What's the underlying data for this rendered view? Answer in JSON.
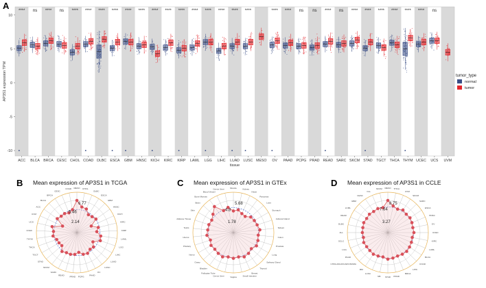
{
  "colors": {
    "normal": "#3a4e86",
    "tumor": "#e3262c",
    "panel_bg": "#d9d9d9",
    "radar_line": "#d96a6a",
    "radar_point": "#d9505a",
    "radar_fill": "#f2c9cc",
    "mean_circle": "#2f54c8",
    "outer_ring": "#e8b352",
    "spoke": "#9a9a9a"
  },
  "chart_data": [
    {
      "panel": "A",
      "type": "box-strip",
      "ylabel": "AP3S1 expression TPM",
      "xlabel": "tissue",
      "yticks": [
        10,
        5,
        0,
        -5,
        -10
      ],
      "ylim": [
        -10.8,
        11.2
      ],
      "legend": {
        "title": "tumor_type",
        "items": [
          "normal",
          "tumor"
        ]
      },
      "groups": [
        {
          "tissue": "ACC",
          "normal": 5.1,
          "tumor": 5.9,
          "sig": "****"
        },
        {
          "tissue": "BLCA",
          "normal": 5.6,
          "tumor": 5.4,
          "sig": "ns"
        },
        {
          "tissue": "BRCA",
          "normal": 5.8,
          "tumor": 6.2,
          "sig": "****"
        },
        {
          "tissue": "CESC",
          "normal": 5.7,
          "tumor": 5.5,
          "sig": "ns"
        },
        {
          "tissue": "CHOL",
          "normal": 4.5,
          "tumor": 5.4,
          "sig": "****"
        },
        {
          "tissue": "COAD",
          "normal": 5.7,
          "tumor": 6.1,
          "sig": "****"
        },
        {
          "tissue": "DLBC",
          "normal": 4.6,
          "tumor": 6.4,
          "sig": "****"
        },
        {
          "tissue": "ESCA",
          "normal": 5.1,
          "tumor": 6.0,
          "sig": "****"
        },
        {
          "tissue": "GBM",
          "normal": 6.1,
          "tumor": 6.0,
          "sig": "****"
        },
        {
          "tissue": "HNSC",
          "normal": 5.4,
          "tumor": 5.6,
          "sig": "****"
        },
        {
          "tissue": "KICH",
          "normal": 5.3,
          "tumor": 4.3,
          "sig": "****"
        },
        {
          "tissue": "KIRC",
          "normal": 5.2,
          "tumor": 5.9,
          "sig": "****"
        },
        {
          "tissue": "KIRP",
          "normal": 4.8,
          "tumor": 5.1,
          "sig": "****"
        },
        {
          "tissue": "LAML",
          "normal": 5.2,
          "tumor": 5.8,
          "sig": "****"
        },
        {
          "tissue": "LGG",
          "normal": 6.0,
          "tumor": 6.0,
          "sig": "****"
        },
        {
          "tissue": "LIHC",
          "normal": 4.7,
          "tumor": 5.4,
          "sig": "****"
        },
        {
          "tissue": "LUAD",
          "normal": 5.4,
          "tumor": 6.0,
          "sig": "****"
        },
        {
          "tissue": "LUSC",
          "normal": 5.4,
          "tumor": 6.0,
          "sig": "****"
        },
        {
          "tissue": "MESO",
          "normal": null,
          "tumor": 6.8,
          "sig": ""
        },
        {
          "tissue": "OV",
          "normal": 5.6,
          "tumor": 6.2,
          "sig": "****"
        },
        {
          "tissue": "PAAD",
          "normal": 5.5,
          "tumor": 5.9,
          "sig": "****"
        },
        {
          "tissue": "PCPG",
          "normal": 5.4,
          "tumor": 5.5,
          "sig": "ns"
        },
        {
          "tissue": "PRAD",
          "normal": 5.2,
          "tumor": 5.5,
          "sig": "ns"
        },
        {
          "tissue": "READ",
          "normal": 5.7,
          "tumor": 6.1,
          "sig": "****"
        },
        {
          "tissue": "SARC",
          "normal": 5.6,
          "tumor": 5.8,
          "sig": "ns"
        },
        {
          "tissue": "SKCM",
          "normal": 5.8,
          "tumor": 6.3,
          "sig": "****"
        },
        {
          "tissue": "STAD",
          "normal": 5.1,
          "tumor": 6.0,
          "sig": "****"
        },
        {
          "tissue": "TGCT",
          "normal": 5.5,
          "tumor": 5.2,
          "sig": "****"
        },
        {
          "tissue": "THCA",
          "normal": 5.9,
          "tumor": 5.6,
          "sig": "****"
        },
        {
          "tissue": "THYM",
          "normal": 5.0,
          "tumor": 6.6,
          "sig": "****"
        },
        {
          "tissue": "UCEC",
          "normal": 5.7,
          "tumor": 6.0,
          "sig": "****"
        },
        {
          "tissue": "UCS",
          "normal": 6.2,
          "tumor": 6.2,
          "sig": "ns"
        },
        {
          "tissue": "UVM",
          "normal": null,
          "tumor": 4.5,
          "sig": ""
        }
      ],
      "low_outliers": [
        "ACC",
        "COAD",
        "ESCA",
        "GBM",
        "KICH",
        "KIRP",
        "LGG",
        "LUAD",
        "LUSC",
        "OV",
        "READ",
        "STAD",
        "THYM"
      ]
    },
    {
      "panel": "B",
      "type": "radar",
      "title": "Mean expression of AP3S1 in TCGA",
      "ring_labels": [
        "6.77",
        "5.46",
        "2.14"
      ],
      "max": 6.77,
      "center_value": 2.14,
      "mean": 5.46,
      "categories": [
        "MESO",
        "CHOL",
        "DLBC",
        "ESCA",
        "GBM",
        "HNSC",
        "KICH",
        "KIRC",
        "KIRP",
        "LAML",
        "LGG",
        "LIHC",
        "LUAD",
        "LUSC",
        "OV",
        "PAAD",
        "PCPG",
        "PRAD",
        "READ",
        "SARC",
        "SKCM",
        "STAD",
        "TGCT",
        "THCA",
        "THYM",
        "UCEC",
        "UCS",
        "UVM",
        "ACC",
        "BLCA",
        "BRCA",
        "CESC",
        "COAD"
      ],
      "values": [
        6.77,
        5.9,
        5.8,
        5.2,
        5.3,
        5.5,
        4.4,
        5.3,
        5.0,
        5.6,
        5.7,
        4.8,
        5.3,
        5.2,
        5.5,
        5.4,
        5.0,
        5.3,
        5.4,
        5.4,
        5.6,
        5.0,
        5.1,
        5.2,
        5.6,
        5.5,
        5.8,
        4.4,
        5.6,
        5.4,
        5.4,
        5.2,
        5.5
      ]
    },
    {
      "panel": "C",
      "type": "radar",
      "title": "Mean expression of AP3S1 in GTEx",
      "ring_labels": [
        "5.68",
        "4.8",
        "1.78"
      ],
      "max": 5.68,
      "center_value": 1.78,
      "mean": 4.8,
      "categories": [
        "Muscle",
        "Kidney",
        "Heart",
        "Pancreas",
        "Liver",
        "Stomach",
        "Adrenal Gland",
        "Spleen",
        "Colon",
        "Prostate",
        "Lung",
        "Salivary Gland",
        "Thyroid",
        "Breast",
        "Small Intestine",
        "Vagina",
        "Cervix Uteri",
        "Fallopian Tube",
        "Bladder",
        "Ovary",
        "Nerve",
        "Pituitary",
        "Uterus",
        "Testis",
        "Adipose Tissue",
        "Skin",
        "Brain",
        "Bone Marrow",
        "Blood Vessel",
        "Cervix Uteri"
      ],
      "values": [
        4.4,
        4.6,
        4.3,
        4.2,
        4.6,
        4.7,
        4.8,
        5.0,
        4.8,
        4.9,
        5.0,
        4.7,
        4.9,
        5.0,
        4.8,
        4.9,
        4.8,
        5.0,
        4.9,
        4.8,
        4.9,
        4.7,
        5.0,
        4.9,
        4.9,
        4.8,
        5.1,
        5.68,
        4.7,
        4.9
      ]
    },
    {
      "panel": "D",
      "type": "radar",
      "title": "Mean expression of AP3S1 in CCLE",
      "ring_labels": [
        "8.75",
        "7.64",
        "3.27"
      ],
      "max": 8.75,
      "center_value": 3.27,
      "mean": 7.64,
      "categories": [
        "MESO",
        "THCA",
        "UVM",
        "SKCM",
        "SARC",
        "ESCA",
        "HNSC",
        "OV",
        "UCEC",
        "KIRC",
        "LAML",
        "BLCA",
        "COAD",
        "LIHC",
        "BRCA",
        "PRAD",
        "STAD",
        "NB",
        "LUSC",
        "MM",
        "CHOLANGIOCARCINOMA",
        "PAAD",
        "LGG",
        "SCLC",
        "ALL",
        "DLBC",
        "READ",
        "LCML",
        "GBM",
        "CESC",
        "CLL",
        "SKCM"
      ],
      "values": [
        8.75,
        7.9,
        7.6,
        7.9,
        7.7,
        7.8,
        7.7,
        7.6,
        7.7,
        7.5,
        7.6,
        7.7,
        7.8,
        7.7,
        7.6,
        7.7,
        7.8,
        7.5,
        7.6,
        7.7,
        7.6,
        7.6,
        7.7,
        7.5,
        7.6,
        7.6,
        7.7,
        7.6,
        7.7,
        7.6,
        7.7,
        7.6
      ]
    }
  ]
}
